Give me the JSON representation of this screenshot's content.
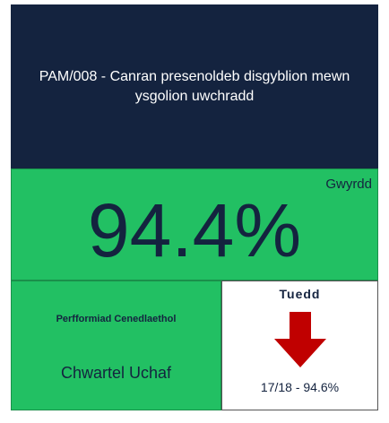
{
  "header": {
    "title": "PAM/008 - Canran presenoldeb disgyblion mewn ysgolion uwchradd"
  },
  "main": {
    "value": "94.4%",
    "status": "Gwyrdd"
  },
  "national": {
    "label": "Perfformiad Cenedlaethol",
    "quartile": "Chwartel Uchaf"
  },
  "trend": {
    "label": "Tuedd",
    "previous": "17/18 - 94.6%"
  }
}
